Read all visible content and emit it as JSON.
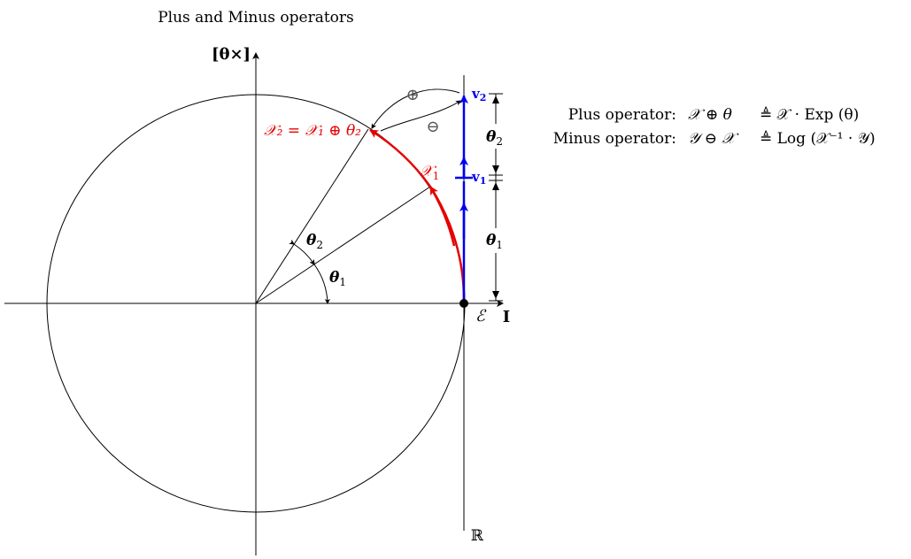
{
  "title": "Plus and Minus operators",
  "axes": {
    "vertical_label": "[θ×]",
    "horizontal_label": "I",
    "tangent_label": "ℝ"
  },
  "points": {
    "origin_label": "ℰ",
    "x1_label": "𝒳",
    "x1_sub": "1",
    "x2_expression": "𝒳₂ = 𝒳₁ ⊕ θ₂"
  },
  "angles": {
    "theta1": "θ",
    "theta1_sub": "1",
    "theta2": "θ",
    "theta2_sub": "2"
  },
  "tangent_vectors": {
    "v1": "v",
    "v1_sub": "1",
    "v2": "v",
    "v2_sub": "2"
  },
  "operators": {
    "plus_symbol": "⊕",
    "minus_symbol": "⊖"
  },
  "dimensions": {
    "theta1": "θ",
    "theta1_sub": "1",
    "theta2": "θ",
    "theta2_sub": "2"
  },
  "definitions": [
    {
      "name": "Plus operator:",
      "lhs": "𝒳 ⊕ θ",
      "rhs": "≜ 𝒳 · Exp (θ)"
    },
    {
      "name": "Minus operator:",
      "lhs": "𝒴 ⊖ 𝒳",
      "rhs": "≜ Log (𝒳⁻¹ · 𝒴)"
    }
  ],
  "colors": {
    "ink": "#000000",
    "manifold_path": "#e60000",
    "tangent_path": "#0000ee",
    "operator_gray": "#555555"
  }
}
